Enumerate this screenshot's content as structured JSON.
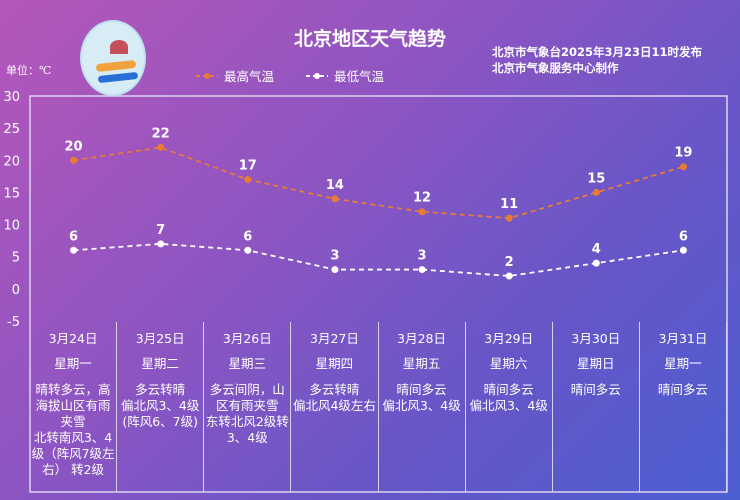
{
  "title": "北京地区天气趋势",
  "publisher": [
    "北京市气象台2025年3月23日11时发布",
    "北京市气象服务中心制作"
  ],
  "unit": "单位：℃",
  "colors": {
    "high": "#e87b35",
    "low": "#ffffff"
  },
  "chart_data": {
    "type": "line",
    "ylim": [
      -5,
      30
    ],
    "yticks": [
      "30",
      "25",
      "20",
      "15",
      "10",
      "5",
      "0",
      "-5"
    ],
    "yvalues": [
      30,
      25,
      20,
      15,
      10,
      5,
      0,
      -5
    ],
    "categories": [
      "3月24日",
      "3月25日",
      "3月26日",
      "3月27日",
      "3月28日",
      "3月29日",
      "3月30日",
      "3月31日"
    ],
    "series": [
      {
        "name": "最高气温",
        "values": [
          20,
          22,
          17,
          14,
          12,
          11,
          15,
          19
        ]
      },
      {
        "name": "最低气温",
        "values": [
          6,
          7,
          6,
          3,
          3,
          2,
          4,
          6
        ]
      }
    ],
    "legend": "top"
  },
  "days": [
    {
      "date": "3月24日",
      "week": "星期一",
      "desc": "晴转多云，高海拔山区有雨夹雪\n北转南风3、4级（阵风7级左右） 转2级"
    },
    {
      "date": "3月25日",
      "week": "星期二",
      "desc": "多云转晴\n偏北风3、4级(阵风6、7级)"
    },
    {
      "date": "3月26日",
      "week": "星期三",
      "desc": "多云间阴，山区有雨夹雪\n东转北风2级转3、4级"
    },
    {
      "date": "3月27日",
      "week": "星期四",
      "desc": "多云转晴\n偏北风4级左右"
    },
    {
      "date": "3月28日",
      "week": "星期五",
      "desc": "晴间多云\n偏北风3、4级"
    },
    {
      "date": "3月29日",
      "week": "星期六",
      "desc": "晴间多云\n偏北风3、4级"
    },
    {
      "date": "3月30日",
      "week": "星期日",
      "desc": "晴间多云"
    },
    {
      "date": "3月31日",
      "week": "星期一",
      "desc": "晴间多云"
    }
  ]
}
